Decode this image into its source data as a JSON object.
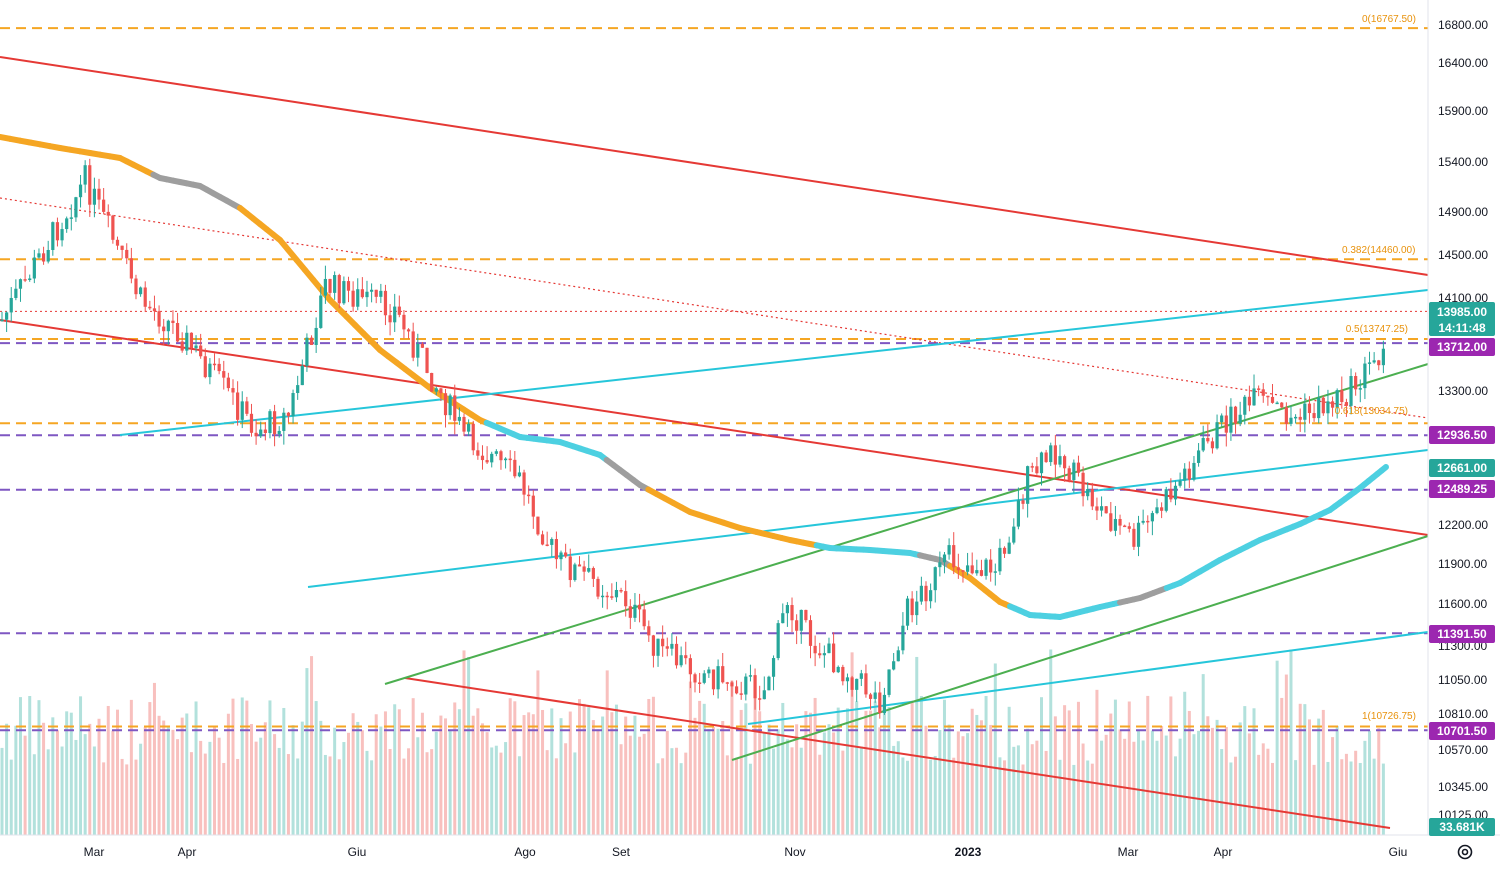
{
  "chart_data": {
    "type": "candlestick",
    "price_axis": {
      "ylim": [
        10000,
        16900
      ],
      "ticks": [
        "16800.00",
        "16400.00",
        "15900.00",
        "15400.00",
        "14900.00",
        "14500.00",
        "14100.00",
        "13300.00",
        "12200.00",
        "11900.00",
        "11600.00",
        "11300.00",
        "11050.00",
        "10810.00",
        "10570.00",
        "10345.00",
        "10125.00"
      ]
    },
    "time_axis": {
      "labels": [
        "Mar",
        "Apr",
        "Giu",
        "Ago",
        "Set",
        "Nov",
        "2023",
        "Mar",
        "Apr",
        "Giu"
      ]
    },
    "price_tags": [
      {
        "label": "13985.00",
        "sub": "14:11:48",
        "color": "#26a69a"
      },
      {
        "label": "13712.00",
        "color": "#9c27b0"
      },
      {
        "label": "12936.50",
        "color": "#9c27b0"
      },
      {
        "label": "12661.00",
        "color": "#26a69a"
      },
      {
        "label": "12489.25",
        "color": "#9c27b0"
      },
      {
        "label": "11391.50",
        "color": "#9c27b0"
      },
      {
        "label": "10701.50",
        "color": "#9c27b0"
      },
      {
        "label": "33.681K",
        "color": "#26a69a"
      }
    ],
    "horizontal_levels": [
      {
        "price": 16767.5,
        "style": "dashed",
        "color": "#f5a623"
      },
      {
        "price": 14460,
        "style": "dashed",
        "color": "#f5a623"
      },
      {
        "price": 13747.25,
        "style": "dashed",
        "color": "#f5a623"
      },
      {
        "price": 13712,
        "style": "dashed",
        "color": "#7e57c2"
      },
      {
        "price": 13034.75,
        "style": "dashed",
        "color": "#f5a623"
      },
      {
        "price": 12936.5,
        "style": "dashed",
        "color": "#7e57c2"
      },
      {
        "price": 12489.25,
        "style": "dashed",
        "color": "#7e57c2"
      },
      {
        "price": 11391.5,
        "style": "dashed",
        "color": "#7e57c2"
      },
      {
        "price": 10726.75,
        "style": "dashed",
        "color": "#f5a623"
      },
      {
        "price": 10701.5,
        "style": "dashed",
        "color": "#7e57c2"
      },
      {
        "price": 13985,
        "style": "dotted",
        "color": "#e53935"
      }
    ],
    "fib_labels": [
      "0(16767.50)",
      "0.382(14460.00)",
      "0.5(13747.25)",
      "0.618(13034.75)",
      "1(10726.75)"
    ],
    "moving_average": {
      "colors": {
        "falling": "#f5a623",
        "neutral": "#9e9e9e",
        "rising": "#4dd0e1"
      }
    },
    "colors": {
      "up": "#26a69a",
      "down": "#ef5350",
      "trend_red": "#e53935",
      "trend_cyan": "#26c6da",
      "trend_green": "#4caf50"
    }
  },
  "icons": {
    "settings": "gear-icon"
  }
}
